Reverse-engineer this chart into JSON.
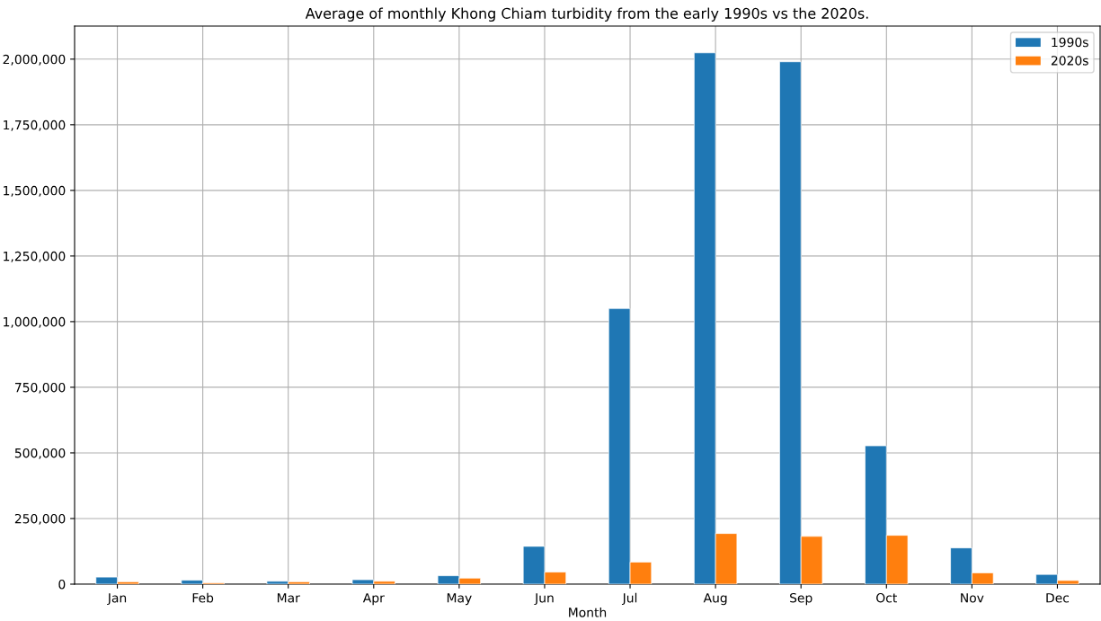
{
  "chart_data": {
    "type": "bar",
    "title": "Average of monthly Khong Chiam turbidity from the early 1990s vs the 2020s.",
    "xlabel": "Month",
    "categories": [
      "Jan",
      "Feb",
      "Mar",
      "Apr",
      "May",
      "Jun",
      "Jul",
      "Aug",
      "Sep",
      "Oct",
      "Nov",
      "Dec"
    ],
    "series": [
      {
        "name": "1990s",
        "color": "#1f77b4",
        "values": [
          27000,
          15000,
          11000,
          17000,
          32000,
          144000,
          1050000,
          2024000,
          1990000,
          527000,
          138000,
          37000
        ]
      },
      {
        "name": "2020s",
        "color": "#ff7f0e",
        "values": [
          9000,
          5000,
          9000,
          11000,
          23000,
          46000,
          84000,
          193000,
          182000,
          186000,
          43000,
          14000
        ]
      }
    ],
    "ylim": [
      0,
      2126000
    ],
    "yticks": [
      {
        "value": 0,
        "label": "0"
      },
      {
        "value": 250000,
        "label": "250,000"
      },
      {
        "value": 500000,
        "label": "500,000"
      },
      {
        "value": 750000,
        "label": "750,000"
      },
      {
        "value": 1000000,
        "label": "1,000,000"
      },
      {
        "value": 1250000,
        "label": "1,250,000"
      },
      {
        "value": 1500000,
        "label": "1,500,000"
      },
      {
        "value": 1750000,
        "label": "1,750,000"
      },
      {
        "value": 2000000,
        "label": "2,000,000"
      }
    ],
    "grid": true,
    "legend": "top right"
  }
}
